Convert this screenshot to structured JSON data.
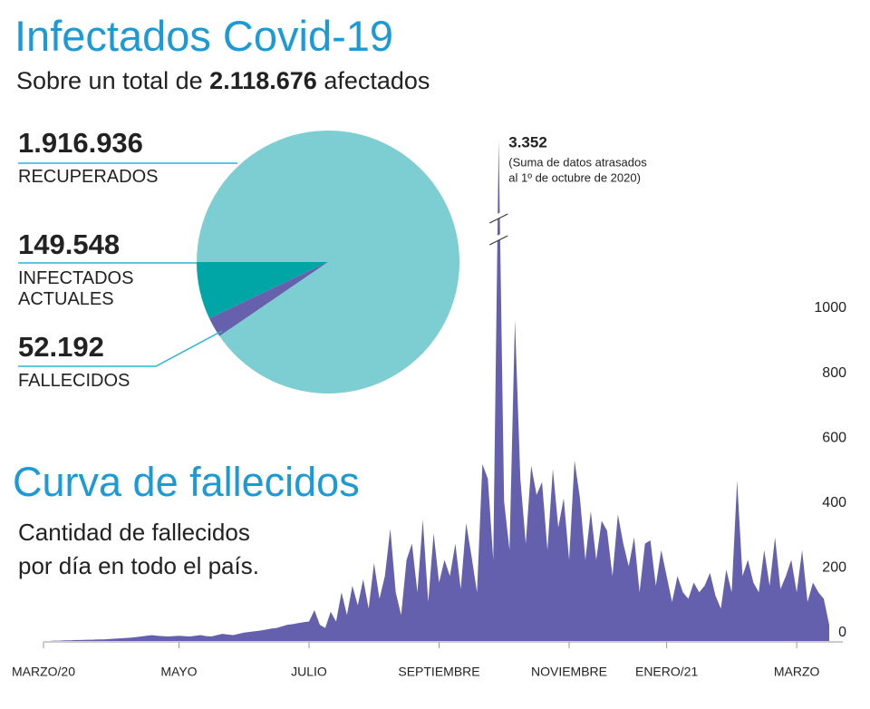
{
  "title": "Infectados Covid-19",
  "subtitle_parts": [
    "Sobre un total de",
    "2.118.676",
    "afectados"
  ],
  "chart_data": [
    {
      "type": "pie",
      "categories": [
        "RECUPERADOS",
        "INFECTADOS ACTUALES",
        "FALLECIDOS"
      ],
      "values": [
        1916936,
        149548,
        52192
      ],
      "value_labels": [
        "1.916.936",
        "149.548",
        "52.192"
      ],
      "colors": [
        "#7dced3",
        "#00a6a6",
        "#6760ad"
      ]
    },
    {
      "type": "area",
      "title": "Curva de fallecidos",
      "subtitle_lines": [
        "Cantidad de fallecidos",
        "por día en todo el país."
      ],
      "color": "#6560ad",
      "axis_break": true,
      "note": [
        "(Suma de datos atrasados",
        "al 1º de octubre de 2020)"
      ],
      "ylim": [
        0,
        1000
      ],
      "yticks": [
        0,
        200,
        400,
        600,
        800,
        1000
      ],
      "categories": [
        "MARZO/20",
        null,
        null,
        null,
        null,
        null,
        null,
        null,
        null,
        null,
        null,
        null,
        null,
        null,
        null,
        null,
        null,
        null,
        null,
        null,
        null,
        null,
        null,
        null,
        null,
        "MAYO",
        null,
        null,
        null,
        null,
        null,
        null,
        null,
        null,
        null,
        null,
        null,
        null,
        null,
        null,
        null,
        null,
        null,
        null,
        null,
        null,
        null,
        null,
        null,
        "JULIO",
        null,
        null,
        null,
        null,
        null,
        null,
        null,
        null,
        null,
        null,
        null,
        null,
        null,
        null,
        null,
        null,
        null,
        null,
        null,
        null,
        null,
        null,
        null,
        "SEPTIEMBRE",
        null,
        null,
        null,
        null,
        null,
        null,
        null,
        null,
        null,
        null,
        null,
        null,
        null,
        null,
        null,
        null,
        null,
        null,
        null,
        null,
        null,
        null,
        null,
        "NOVIEMBRE",
        null,
        null,
        null,
        null,
        null,
        null,
        null,
        null,
        null,
        null,
        null,
        null,
        null,
        null,
        null,
        null,
        null,
        "ENERO/21",
        null,
        null,
        null,
        null,
        null,
        null,
        null,
        null,
        null,
        null,
        null,
        null,
        null,
        null,
        null,
        null,
        null,
        null,
        null,
        null,
        null,
        null,
        null,
        "MARZO",
        null,
        null,
        null,
        null,
        null,
        null
      ],
      "values": [
        0,
        0,
        1,
        1,
        2,
        2,
        3,
        3,
        4,
        4,
        5,
        5,
        6,
        7,
        8,
        9,
        10,
        12,
        14,
        16,
        18,
        16,
        15,
        14,
        15,
        16,
        15,
        14,
        16,
        18,
        15,
        14,
        18,
        22,
        20,
        18,
        22,
        26,
        28,
        30,
        32,
        35,
        38,
        40,
        45,
        50,
        52,
        55,
        58,
        60,
        95,
        50,
        40,
        90,
        60,
        150,
        80,
        170,
        110,
        190,
        100,
        240,
        130,
        200,
        346,
        150,
        80,
        250,
        300,
        150,
        374,
        120,
        332,
        180,
        250,
        200,
        300,
        160,
        363,
        260,
        150,
        545,
        500,
        250,
        3352,
        430,
        280,
        990,
        500,
        300,
        540,
        450,
        490,
        280,
        530,
        350,
        440,
        250,
        556,
        440,
        250,
        400,
        250,
        370,
        340,
        200,
        390,
        300,
        230,
        320,
        150,
        300,
        310,
        170,
        280,
        200,
        120,
        200,
        150,
        130,
        180,
        150,
        170,
        210,
        140,
        100,
        220,
        150,
        494,
        200,
        250,
        180,
        150,
        280,
        170,
        320,
        160,
        200,
        250,
        150,
        280,
        120,
        180,
        150,
        130,
        50
      ],
      "value_labels": [
        null,
        null,
        null,
        null,
        null,
        null,
        null,
        null,
        null,
        null,
        null,
        null,
        null,
        null,
        null,
        null,
        null,
        null,
        null,
        null,
        null,
        null,
        null,
        null,
        null,
        null,
        null,
        null,
        null,
        null,
        null,
        null,
        null,
        null,
        null,
        null,
        null,
        null,
        null,
        null,
        null,
        null,
        null,
        null,
        null,
        null,
        null,
        null,
        null,
        null,
        null,
        null,
        null,
        null,
        null,
        null,
        null,
        null,
        null,
        null,
        null,
        null,
        null,
        null,
        null,
        null,
        null,
        null,
        null,
        null,
        null,
        null,
        null,
        null,
        null,
        null,
        null,
        null,
        null,
        null,
        null,
        null,
        null,
        null,
        "3.352",
        null,
        null,
        null,
        null,
        null,
        null,
        null,
        null,
        null,
        null,
        null,
        null,
        null,
        null,
        null,
        null,
        null,
        null,
        null,
        null,
        null,
        null,
        null,
        null,
        null,
        null,
        null,
        null,
        null,
        null,
        null,
        null,
        null,
        null,
        null,
        null,
        null,
        null,
        null,
        null,
        null,
        null,
        null,
        null,
        null,
        null,
        null,
        null,
        null,
        null,
        null,
        null,
        null,
        null,
        null,
        null,
        null,
        null,
        null,
        null,
        null
      ]
    }
  ]
}
